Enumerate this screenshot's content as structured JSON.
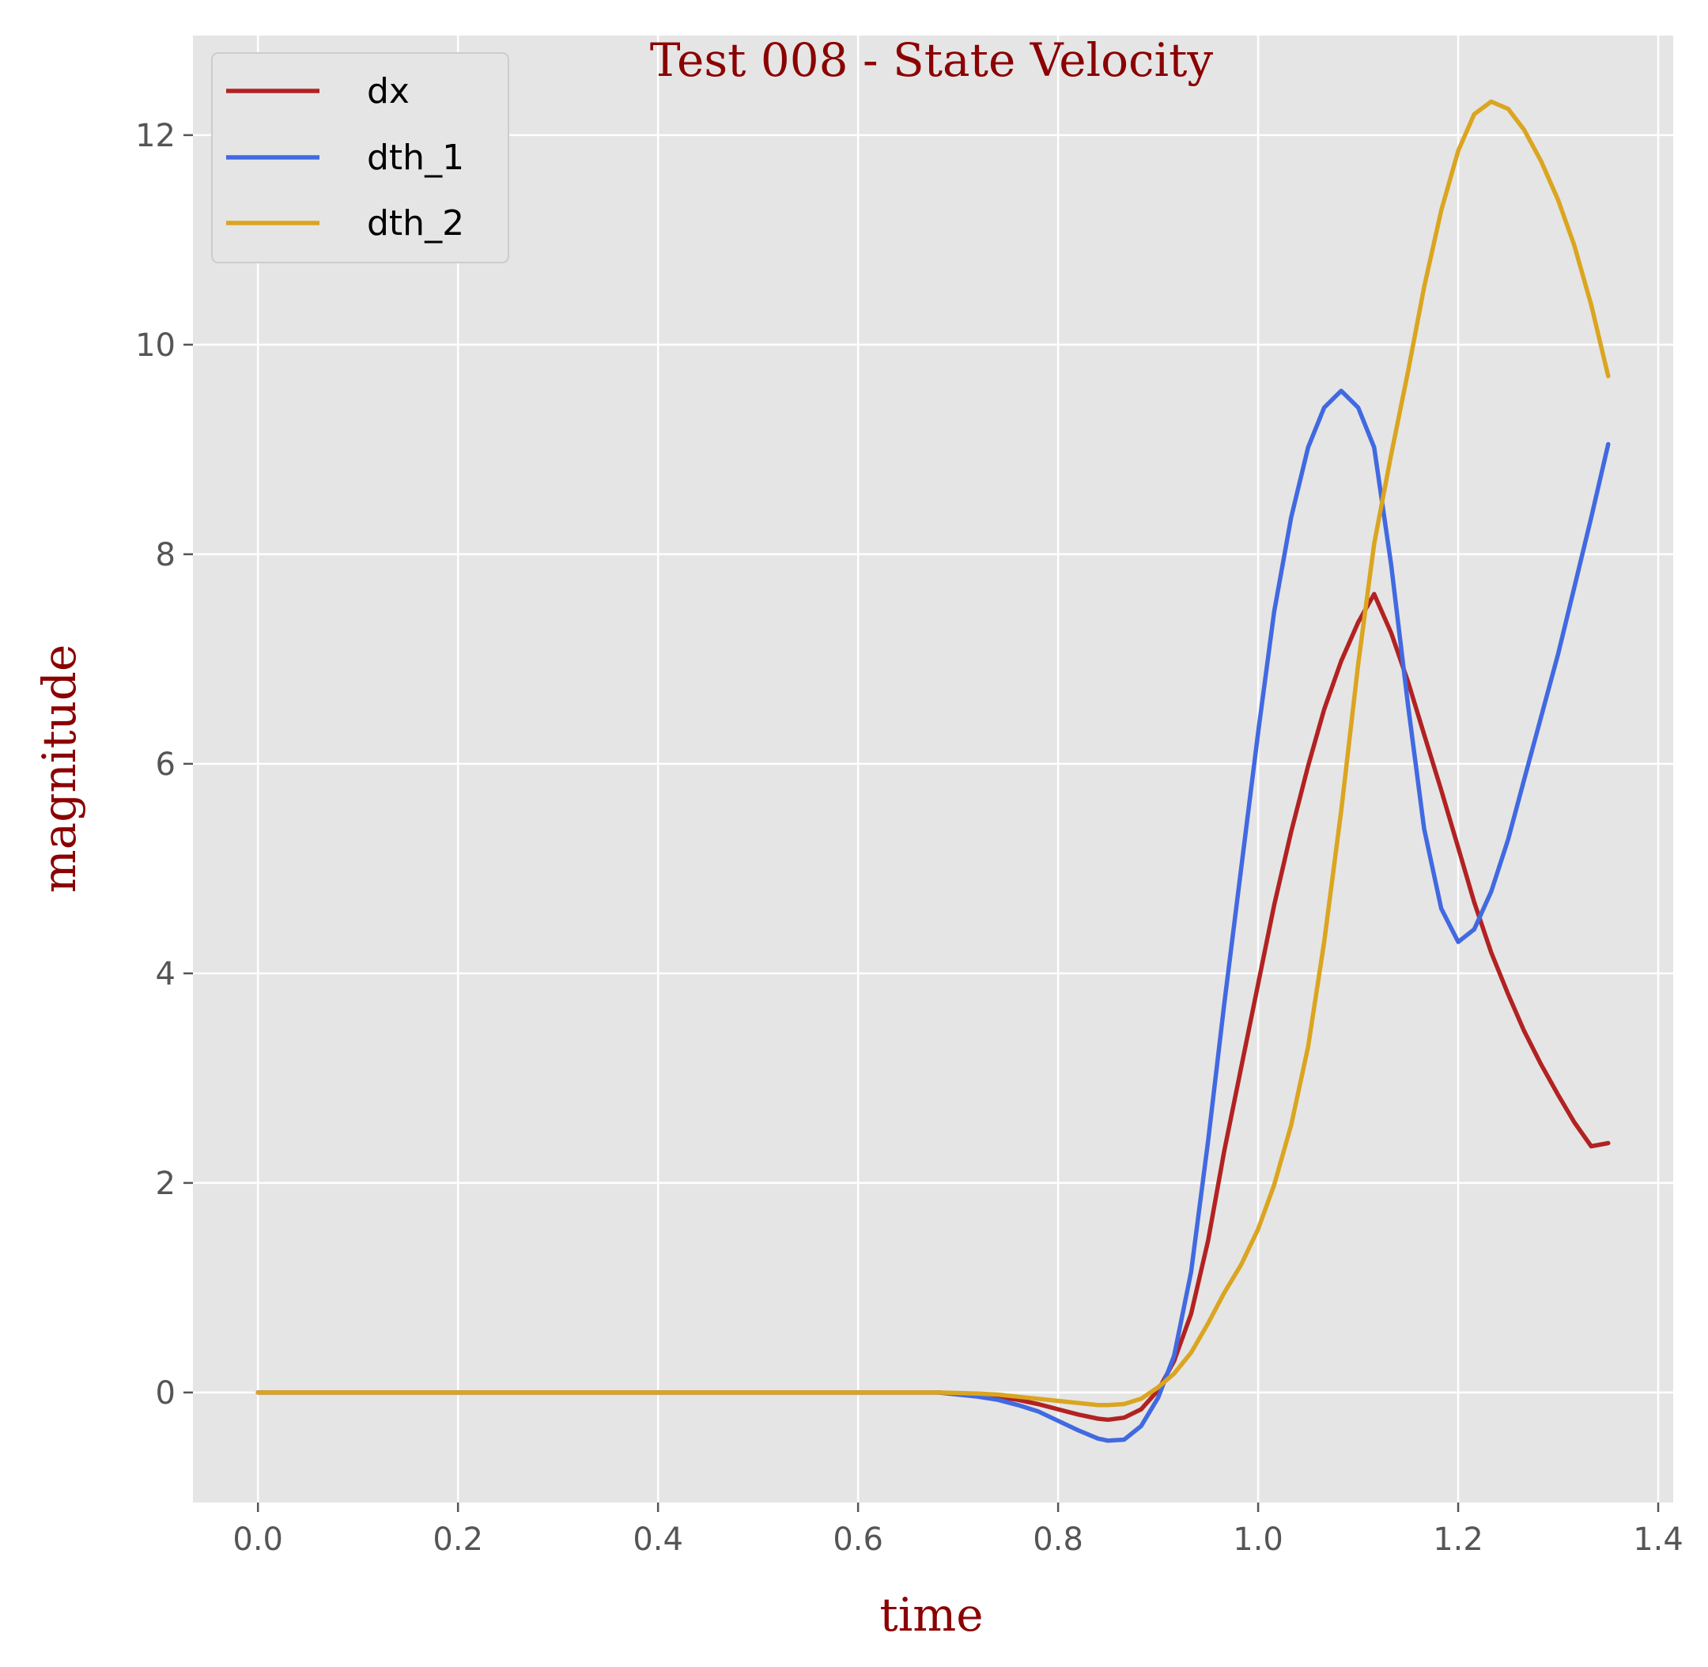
{
  "chart_data": {
    "type": "line",
    "title": "Test 008 - State Velocity",
    "xlabel": "time",
    "ylabel": "magnitude",
    "xlim": [
      -0.065,
      1.415
    ],
    "ylim": [
      -1.05,
      12.95
    ],
    "xticks": [
      0.0,
      0.2,
      0.4,
      0.6,
      0.8,
      1.0,
      1.2,
      1.4
    ],
    "xtick_labels": [
      "0.0",
      "0.2",
      "0.4",
      "0.6",
      "0.8",
      "1.0",
      "1.2",
      "1.4"
    ],
    "yticks": [
      0,
      2,
      4,
      6,
      8,
      10,
      12
    ],
    "ytick_labels": [
      "0",
      "2",
      "4",
      "6",
      "8",
      "10",
      "12"
    ],
    "grid": true,
    "legend_position": "top-left",
    "background": "#e5e5e5",
    "series": [
      {
        "name": "dx",
        "color": "#b22222",
        "x": [
          0.0,
          0.1,
          0.2,
          0.3,
          0.4,
          0.5,
          0.6,
          0.68,
          0.7,
          0.72,
          0.74,
          0.76,
          0.78,
          0.8,
          0.82,
          0.84,
          0.85,
          0.866,
          0.883,
          0.9,
          0.916,
          0.933,
          0.95,
          0.966,
          0.983,
          1.0,
          1.016,
          1.033,
          1.05,
          1.066,
          1.083,
          1.1,
          1.116,
          1.133,
          1.15,
          1.166,
          1.183,
          1.2,
          1.216,
          1.233,
          1.25,
          1.266,
          1.283,
          1.3,
          1.316,
          1.333,
          1.35
        ],
        "y": [
          0,
          0,
          0,
          0,
          0,
          0,
          0,
          0,
          -0.01,
          -0.02,
          -0.04,
          -0.07,
          -0.11,
          -0.16,
          -0.21,
          -0.25,
          -0.26,
          -0.24,
          -0.16,
          0.02,
          0.3,
          0.75,
          1.45,
          2.3,
          3.1,
          3.9,
          4.65,
          5.35,
          5.98,
          6.52,
          6.98,
          7.35,
          7.62,
          7.25,
          6.78,
          6.28,
          5.75,
          5.2,
          4.68,
          4.2,
          3.8,
          3.45,
          3.13,
          2.84,
          2.58,
          2.35,
          2.38
        ]
      },
      {
        "name": "dth_1",
        "color": "#4169e1",
        "x": [
          0.0,
          0.1,
          0.2,
          0.3,
          0.4,
          0.5,
          0.6,
          0.68,
          0.7,
          0.72,
          0.74,
          0.76,
          0.78,
          0.8,
          0.82,
          0.84,
          0.85,
          0.866,
          0.883,
          0.9,
          0.916,
          0.933,
          0.95,
          0.966,
          0.983,
          1.0,
          1.016,
          1.033,
          1.05,
          1.066,
          1.083,
          1.1,
          1.116,
          1.133,
          1.15,
          1.166,
          1.183,
          1.2,
          1.216,
          1.233,
          1.25,
          1.266,
          1.283,
          1.3,
          1.316,
          1.333,
          1.35
        ],
        "y": [
          0,
          0,
          0,
          0,
          0,
          0,
          0,
          0,
          -0.02,
          -0.04,
          -0.07,
          -0.12,
          -0.18,
          -0.27,
          -0.36,
          -0.44,
          -0.46,
          -0.45,
          -0.32,
          -0.05,
          0.35,
          1.15,
          2.4,
          3.7,
          5.0,
          6.3,
          7.45,
          8.35,
          9.02,
          9.4,
          9.56,
          9.4,
          9.02,
          7.9,
          6.55,
          5.38,
          4.62,
          4.3,
          4.42,
          4.78,
          5.28,
          5.85,
          6.45,
          7.05,
          7.68,
          8.35,
          9.05
        ]
      },
      {
        "name": "dth_2",
        "color": "#daa520",
        "x": [
          0.0,
          0.1,
          0.2,
          0.3,
          0.4,
          0.5,
          0.6,
          0.68,
          0.7,
          0.72,
          0.74,
          0.76,
          0.78,
          0.8,
          0.82,
          0.84,
          0.85,
          0.866,
          0.883,
          0.9,
          0.916,
          0.933,
          0.95,
          0.966,
          0.983,
          1.0,
          1.016,
          1.033,
          1.05,
          1.066,
          1.083,
          1.1,
          1.116,
          1.133,
          1.15,
          1.166,
          1.183,
          1.2,
          1.216,
          1.233,
          1.25,
          1.266,
          1.283,
          1.3,
          1.316,
          1.333,
          1.35
        ],
        "y": [
          0,
          0,
          0,
          0,
          0,
          0,
          0,
          0,
          -0.005,
          -0.01,
          -0.02,
          -0.04,
          -0.06,
          -0.08,
          -0.1,
          -0.12,
          -0.12,
          -0.11,
          -0.06,
          0.05,
          0.18,
          0.38,
          0.66,
          0.95,
          1.22,
          1.56,
          1.98,
          2.55,
          3.3,
          4.3,
          5.55,
          6.95,
          8.1,
          8.95,
          9.75,
          10.55,
          11.28,
          11.85,
          12.2,
          12.32,
          12.25,
          12.05,
          11.75,
          11.38,
          10.95,
          10.38,
          9.7
        ]
      }
    ]
  }
}
